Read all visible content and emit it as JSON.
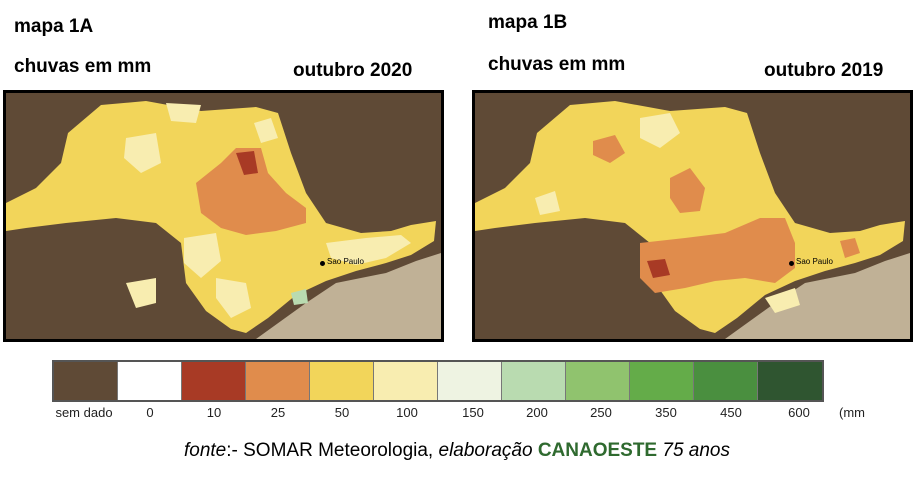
{
  "map_a": {
    "title": "mapa 1A",
    "subtitle": "chuvas em mm",
    "date": "outubro 2020",
    "city": "Sao Paulo"
  },
  "map_b": {
    "title": "mapa 1B",
    "subtitle": "chuvas em mm",
    "date": "outubro 2019",
    "city": "Sao Paulo"
  },
  "legend": {
    "unit": "(mm",
    "items": [
      {
        "label": "sem dado",
        "color": "#5f4a36"
      },
      {
        "label": "0",
        "color": "#ffffff"
      },
      {
        "label": "10",
        "color": "#a83a25"
      },
      {
        "label": "25",
        "color": "#e08c4c"
      },
      {
        "label": "50",
        "color": "#f2d55a"
      },
      {
        "label": "100",
        "color": "#f8edb0"
      },
      {
        "label": "150",
        "color": "#eef3e2"
      },
      {
        "label": "200",
        "color": "#b9dbb0"
      },
      {
        "label": "250",
        "color": "#90c36e"
      },
      {
        "label": "350",
        "color": "#64ac49"
      },
      {
        "label": "450",
        "color": "#4a8f3f"
      },
      {
        "label": "600",
        "color": "#2f5530"
      }
    ]
  },
  "footer": {
    "fonte": "fonte",
    "source": ":- SOMAR Meteorologia, ",
    "elaboracao": "elaboração",
    "org": "CANAOESTE",
    "anos": " 75 anos"
  }
}
